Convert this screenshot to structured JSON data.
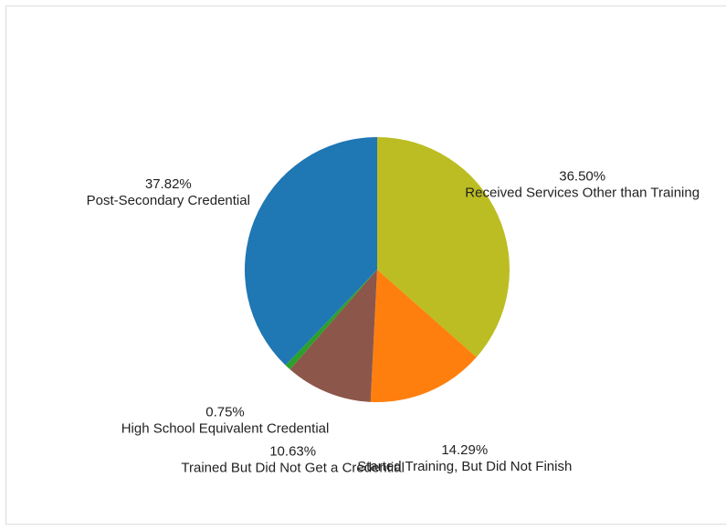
{
  "chart_data": {
    "type": "pie",
    "categories": [
      "Received Services Other than Training",
      "Started Training, But Did Not Finish",
      "Trained But Did Not Get a Credential",
      "High School Equivalent Credential",
      "Post-Secondary Credential"
    ],
    "values": [
      36.5,
      14.29,
      10.63,
      0.75,
      37.82
    ],
    "value_labels": [
      "36.50%",
      "14.29%",
      "10.63%",
      "0.75%",
      "37.82%"
    ],
    "colors": [
      "#bcbd22",
      "#ff7f0e",
      "#8c564b",
      "#2ca02c",
      "#1f77b4"
    ]
  }
}
